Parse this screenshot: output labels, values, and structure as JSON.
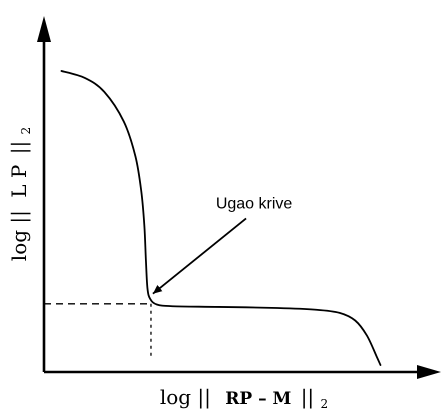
{
  "chart_data": {
    "type": "line",
    "xlabel": {
      "prefix": "log ||",
      "math": "RP – M",
      "suffix": "||",
      "subscript": "2"
    },
    "ylabel": {
      "prefix": "log ||",
      "math": "L P",
      "suffix": "||",
      "subscript": "2"
    },
    "xlim": [
      0,
      100
    ],
    "ylim": [
      0,
      100
    ],
    "grid": false,
    "legend": "none",
    "curve": {
      "points": [
        [
          4.5,
          86.5
        ],
        [
          10.5,
          84.5
        ],
        [
          15.5,
          80.5
        ],
        [
          20.5,
          72.0
        ],
        [
          23.5,
          62.0
        ],
        [
          25.0,
          52.0
        ],
        [
          25.8,
          42.0
        ],
        [
          26.2,
          32.0
        ],
        [
          26.6,
          24.0
        ],
        [
          27.3,
          21.0
        ],
        [
          29.0,
          19.4
        ],
        [
          33.0,
          18.9
        ],
        [
          45.0,
          18.7
        ],
        [
          60.0,
          18.4
        ],
        [
          70.0,
          17.9
        ],
        [
          76.0,
          17.0
        ],
        [
          80.0,
          14.8
        ],
        [
          83.0,
          10.5
        ],
        [
          85.5,
          4.5
        ],
        [
          86.5,
          2.0
        ]
      ]
    },
    "corner_point": {
      "x": 27.5,
      "y": 19.6
    },
    "annotation": {
      "text": "Ugao krive",
      "text_position": [
        54,
        47
      ],
      "arrow_to": [
        28,
        22.5
      ]
    },
    "colors": {
      "curve": "#000000",
      "axes": "#000000",
      "guides": "#000000"
    }
  }
}
